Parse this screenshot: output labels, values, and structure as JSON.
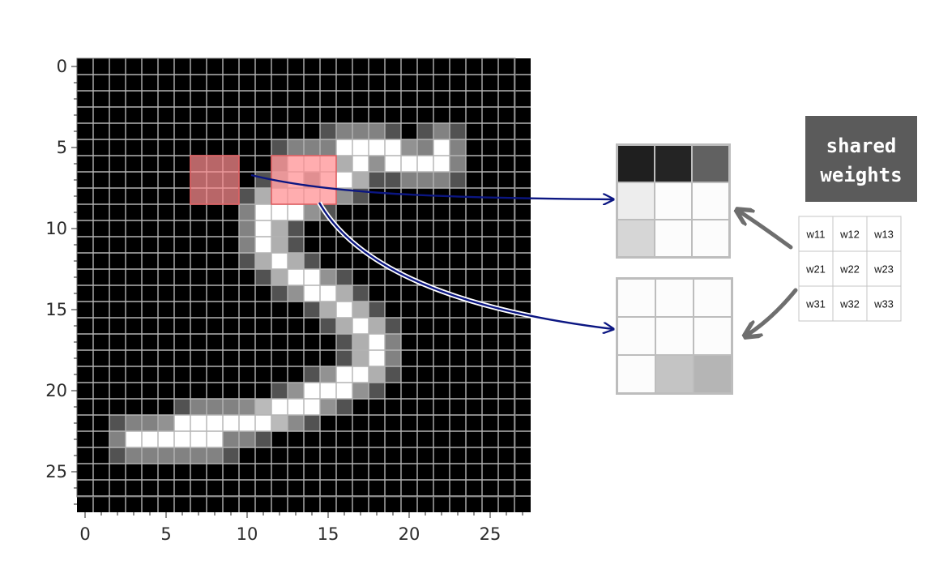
{
  "title": "",
  "input_image": {
    "rows": 28,
    "cols": 28,
    "x_ticks": [
      "0",
      "5",
      "10",
      "15",
      "20",
      "25"
    ],
    "y_ticks": [
      "0",
      "5",
      "10",
      "15",
      "20",
      "25"
    ],
    "grid": true
  },
  "highlights": [
    {
      "name": "patch-a",
      "row_start": 6,
      "row_end": 8,
      "col_start": 7,
      "col_end": 9
    },
    {
      "name": "patch-b",
      "row_start": 6,
      "row_end": 8,
      "col_start": 12,
      "col_end": 15
    }
  ],
  "output_patches": [
    {
      "name": "output-patch-top",
      "values": [
        [
          0.12,
          0.14,
          0.38
        ],
        [
          0.93,
          0.99,
          0.99
        ],
        [
          0.84,
          0.99,
          0.99
        ]
      ]
    },
    {
      "name": "output-patch-bottom",
      "values": [
        [
          0.99,
          0.99,
          0.99
        ],
        [
          0.99,
          0.99,
          0.99
        ],
        [
          0.99,
          0.77,
          0.71
        ]
      ]
    }
  ],
  "shared_weights": {
    "label_line1": "shared",
    "label_line2": "weights",
    "matrix": [
      [
        "w11",
        "w12",
        "w13"
      ],
      [
        "w21",
        "w22",
        "w23"
      ],
      [
        "w31",
        "w32",
        "w33"
      ]
    ]
  },
  "colors": {
    "highlight": "#ff8e90",
    "arrow": "#0b1682",
    "gray_arrow": "#6e6e6e",
    "label_box": "#5b5b5b"
  }
}
